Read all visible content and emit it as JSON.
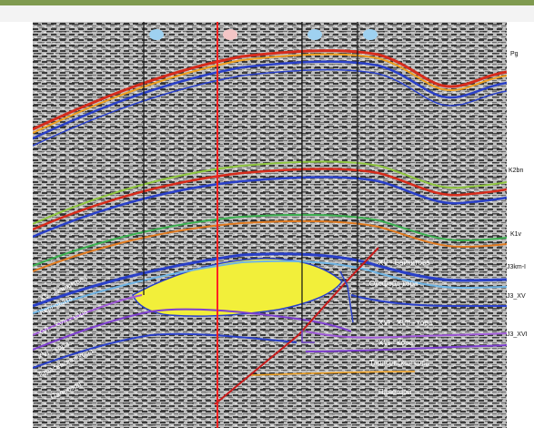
{
  "wells": [
    {
      "label": "",
      "color": "blue"
    },
    {
      "label": "",
      "color": "red"
    },
    {
      "label": "",
      "color": "blue"
    },
    {
      "label": "",
      "color": "blue"
    }
  ],
  "horizons": {
    "pg": "Pg",
    "k2bn": "K2bn",
    "k1v": "K1v",
    "j3km": "J3km-I",
    "j3_xv": "J3_XV",
    "j3_xvi": "J3_XVI"
  },
  "formations": {
    "xv_top": "XV - Байкитова",
    "xv_left": "XV - Байкитова",
    "kern_left": "Керновата",
    "xvi_xvii_left": "XVI - XVII - кора",
    "xvi_left": "XVI - кора",
    "tarasevsk_left": "Тарасевская кора",
    "palaeo_left": "Палеозой",
    "kern_right": "Оксфорд-кора",
    "xvi_xvii_right": "XVI - XVII - кора",
    "xvi_right": "XVI - Кора",
    "tarasevsk_right": "Тарасевская кора",
    "palaeo_right": "Палеозой"
  },
  "colors": {
    "reservoir": "#f2ef3a",
    "well_line_red": "#ff2222",
    "well_line_black": "#111111",
    "fault": "#c81c1c"
  }
}
